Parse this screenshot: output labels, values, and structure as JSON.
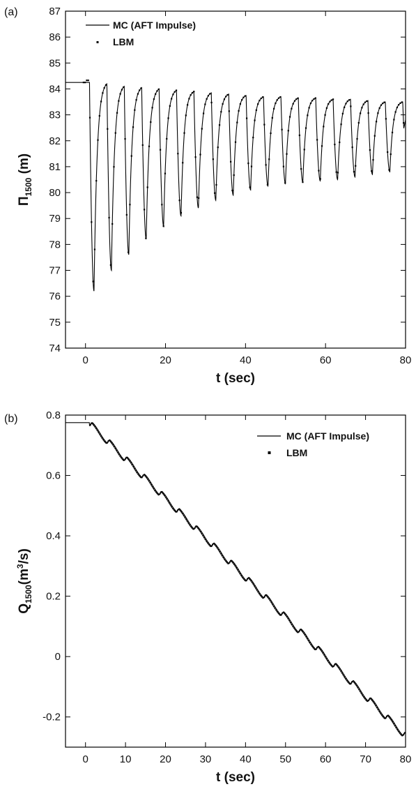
{
  "chart_data": [
    {
      "type": "line",
      "panel_label": "(a)",
      "xlabel": "t (sec)",
      "ylabel": {
        "main": "Π",
        "sub": "1500",
        "unit": " (m)"
      },
      "xlim": [
        -5,
        80
      ],
      "ylim": [
        74,
        87
      ],
      "xticks": [
        0,
        20,
        40,
        60,
        80
      ],
      "yticks": [
        74,
        75,
        76,
        77,
        78,
        79,
        80,
        81,
        82,
        83,
        84,
        85,
        86,
        87
      ],
      "legend": {
        "placement": "top-left",
        "entries": [
          "MC (AFT Impulse)",
          "LBM"
        ]
      },
      "grid": false,
      "series": [
        {
          "name": "MC (AFT Impulse)",
          "style": "line",
          "color": "#000000"
        },
        {
          "name": "LBM",
          "style": "markers",
          "color": "#000000"
        }
      ],
      "model": {
        "initial_value": 84.25,
        "close_start": 1.0,
        "period": 4.35,
        "cycles": 19,
        "minima": [
          76.2,
          77.0,
          77.6,
          78.2,
          78.7,
          79.1,
          79.4,
          79.7,
          79.9,
          80.1,
          80.25,
          80.35,
          80.4,
          80.45,
          80.5,
          80.6,
          80.7,
          80.8,
          80.9
        ],
        "maxima": [
          84.25,
          84.2,
          84.1,
          84.05,
          84.0,
          83.95,
          83.9,
          83.85,
          83.8,
          83.75,
          83.7,
          83.7,
          83.65,
          83.65,
          83.6,
          83.6,
          83.55,
          83.5,
          83.5
        ],
        "end_value": 82.8
      }
    },
    {
      "type": "line",
      "panel_label": "(b)",
      "xlabel": "t (sec)",
      "ylabel": {
        "main": "Q",
        "sub": "1500",
        "unit": "(m",
        "sup": "3",
        "unit2": "/s)"
      },
      "xlim": [
        -5,
        80
      ],
      "ylim": [
        -0.3,
        0.8
      ],
      "xticks": [
        0,
        10,
        20,
        30,
        40,
        50,
        60,
        70,
        80
      ],
      "yticks": [
        -0.2,
        0,
        0.2,
        0.4,
        0.6,
        0.8
      ],
      "ytick_labels": [
        "-0.2",
        "0",
        "0.2",
        "0.4",
        "0.6",
        "0.8"
      ],
      "legend": {
        "placement": "top-right",
        "entries": [
          "MC (AFT Impulse)",
          "LBM"
        ]
      },
      "grid": false,
      "series": [
        {
          "name": "MC (AFT Impulse)",
          "style": "line",
          "color": "#000000"
        },
        {
          "name": "LBM",
          "style": "markers",
          "color": "#000000"
        }
      ],
      "model": {
        "initial_value": 0.775,
        "close_start": 1.0,
        "final_value": -0.26,
        "period": 4.35,
        "step_fraction": 0.1
      }
    }
  ]
}
